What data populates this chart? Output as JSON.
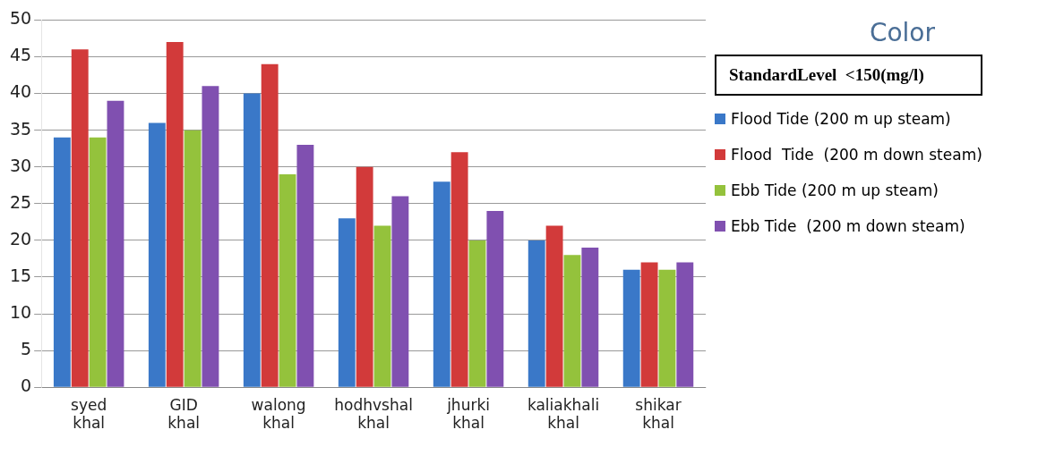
{
  "chart_data": {
    "type": "bar",
    "legend_title": "Color",
    "annotations": [
      "StandardLevel  <150(mg/l)"
    ],
    "categories": [
      "syed khal",
      "GID khal",
      "walong khal",
      "hodhvshal khal",
      "jhurki khal",
      "kaliakhali khal",
      "shikar khal"
    ],
    "series": [
      {
        "name": "Flood Tide (200 m up steam)",
        "color": "#3a78c8",
        "values": [
          34,
          36,
          40,
          23,
          28,
          20,
          16
        ]
      },
      {
        "name": "Flood  Tide  (200 m down steam)",
        "color": "#d23a3a",
        "values": [
          46,
          47,
          44,
          30,
          32,
          22,
          17
        ]
      },
      {
        "name": "Ebb Tide (200 m up steam)",
        "color": "#94c23c",
        "values": [
          34,
          35,
          29,
          22,
          20,
          18,
          16
        ]
      },
      {
        "name": "Ebb Tide  (200 m down steam)",
        "color": "#8050b0",
        "values": [
          39,
          41,
          33,
          26,
          24,
          19,
          17
        ]
      }
    ],
    "ylim": [
      0,
      50
    ],
    "yticks": [
      0,
      5,
      10,
      15,
      20,
      25,
      30,
      35,
      40,
      45,
      50
    ],
    "grid": "y",
    "legend": "right"
  }
}
